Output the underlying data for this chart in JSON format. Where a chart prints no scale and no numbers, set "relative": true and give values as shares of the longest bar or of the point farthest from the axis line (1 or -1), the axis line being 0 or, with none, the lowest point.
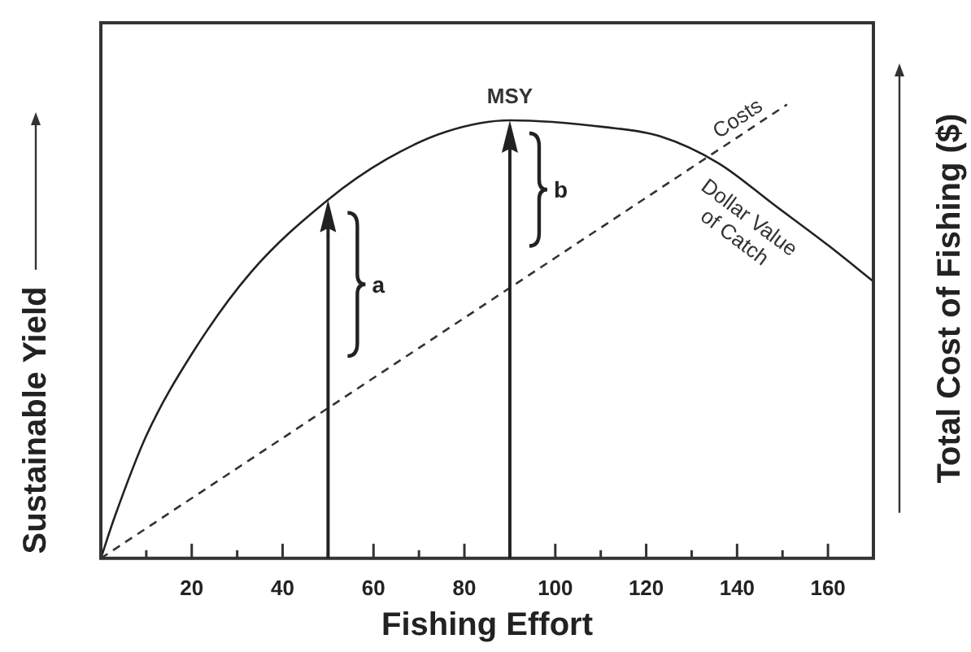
{
  "chart_data": {
    "type": "line",
    "relative": true,
    "xlabel": "Fishing Effort",
    "ylabel": "Sustainable Yield",
    "y2label": "Total Cost of Fishing ($)",
    "xlim": [
      0,
      170
    ],
    "xticks": [
      {
        "value": 10,
        "label": null
      },
      20,
      {
        "value": 30,
        "label": null
      },
      40,
      {
        "value": 50,
        "label": null
      },
      60,
      {
        "value": 70,
        "label": null
      },
      80,
      {
        "value": 90,
        "label": null
      },
      100,
      {
        "value": 110,
        "label": null
      },
      120,
      {
        "value": 130,
        "label": null
      },
      140,
      {
        "value": 150,
        "label": null
      },
      160
    ],
    "series": [
      {
        "x": [
          0,
          3,
          10,
          20,
          33,
          50,
          63,
          76,
          90,
          111,
          123,
          136,
          148,
          160,
          170
        ],
        "values": [
          0,
          0.09,
          0.27,
          0.45,
          0.63,
          0.79,
          0.88,
          0.94,
          0.965,
          0.95,
          0.93,
          0.87,
          0.78,
          0.69,
          0.61
        ],
        "color": "#222222",
        "line_style": "solid"
      },
      {
        "x": [
          0,
          151
        ],
        "values": [
          0,
          1
        ],
        "color": "#333333",
        "line_style": "dashed"
      }
    ],
    "annotations": [
      "a",
      "b",
      {
        "text": "MSY",
        "x": 90,
        "y": 0.965
      },
      "Costs",
      "Dollar Value\nof Catch"
    ],
    "grid": false,
    "legend": false,
    "marker": "none",
    "tick_labels": "x"
  }
}
